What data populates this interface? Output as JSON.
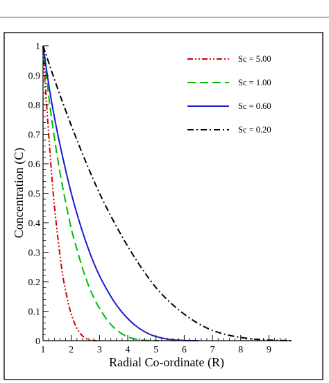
{
  "chart_data": {
    "type": "line",
    "xlabel": "Radial Co-ordinate (R)",
    "ylabel": "Concentration (C)",
    "xlim": [
      1,
      9.8
    ],
    "ylim": [
      0,
      1
    ],
    "x_ticks": [
      1,
      2,
      3,
      4,
      5,
      6,
      7,
      8,
      9
    ],
    "x_tick_labels": [
      "1",
      "2",
      "3",
      "4",
      "5",
      "6",
      "7",
      "8",
      "9"
    ],
    "y_ticks": [
      0,
      0.1,
      0.2,
      0.3,
      0.4,
      0.5,
      0.6,
      0.7,
      0.8,
      0.9,
      1
    ],
    "y_tick_labels": [
      "0",
      "0.1",
      "0.2",
      "0.3",
      "0.4",
      "0.5",
      "0.6",
      "0.7",
      "0.8",
      "0.9",
      "1"
    ],
    "grid": false,
    "legend_position": "top-right",
    "series": [
      {
        "name": "Sc = 5.00",
        "color": "#cc0000",
        "dash": "dash-dot-dot",
        "x": [
          1,
          1.1,
          1.2,
          1.3,
          1.4,
          1.5,
          1.6,
          1.7,
          1.8,
          1.9,
          2.0,
          2.1,
          2.2,
          2.3,
          2.4,
          2.5,
          2.6,
          2.7,
          2.8,
          2.9
        ],
        "y": [
          1,
          0.84,
          0.7,
          0.57,
          0.46,
          0.37,
          0.29,
          0.22,
          0.17,
          0.125,
          0.09,
          0.063,
          0.042,
          0.027,
          0.016,
          0.009,
          0.004,
          0.0015,
          0.0003,
          0
        ]
      },
      {
        "name": "Sc = 1.00",
        "color": "#00bb00",
        "dash": "dash",
        "x": [
          1,
          1.2,
          1.4,
          1.6,
          1.8,
          2.0,
          2.2,
          2.4,
          2.6,
          2.8,
          3.0,
          3.2,
          3.4,
          3.6,
          3.8,
          4.0,
          4.2,
          4.5,
          4.8,
          5.1
        ],
        "y": [
          1,
          0.83,
          0.69,
          0.57,
          0.47,
          0.38,
          0.31,
          0.245,
          0.19,
          0.145,
          0.11,
          0.08,
          0.055,
          0.037,
          0.023,
          0.013,
          0.007,
          0.002,
          0.0005,
          0
        ]
      },
      {
        "name": "Sc = 0.60",
        "color": "#1a1acc",
        "dash": "solid",
        "x": [
          1,
          1.25,
          1.5,
          1.75,
          2.0,
          2.25,
          2.5,
          2.75,
          3.0,
          3.25,
          3.5,
          3.75,
          4.0,
          4.25,
          4.5,
          4.75,
          5.0,
          5.5,
          6.0,
          6.5
        ],
        "y": [
          1,
          0.84,
          0.71,
          0.6,
          0.5,
          0.415,
          0.34,
          0.275,
          0.22,
          0.175,
          0.135,
          0.102,
          0.075,
          0.053,
          0.036,
          0.023,
          0.014,
          0.004,
          0.0006,
          0
        ]
      },
      {
        "name": "Sc = 0.20",
        "color": "#000000",
        "dash": "dash-dot",
        "x": [
          1,
          1.5,
          2.0,
          2.5,
          3.0,
          3.5,
          4.0,
          4.5,
          5.0,
          5.5,
          6.0,
          6.5,
          7.0,
          7.5,
          8.0,
          8.5,
          9.0,
          9.5,
          9.8
        ],
        "y": [
          1,
          0.86,
          0.73,
          0.61,
          0.5,
          0.405,
          0.32,
          0.245,
          0.18,
          0.13,
          0.09,
          0.058,
          0.035,
          0.02,
          0.011,
          0.005,
          0.002,
          0.0005,
          0.0001
        ]
      }
    ]
  }
}
